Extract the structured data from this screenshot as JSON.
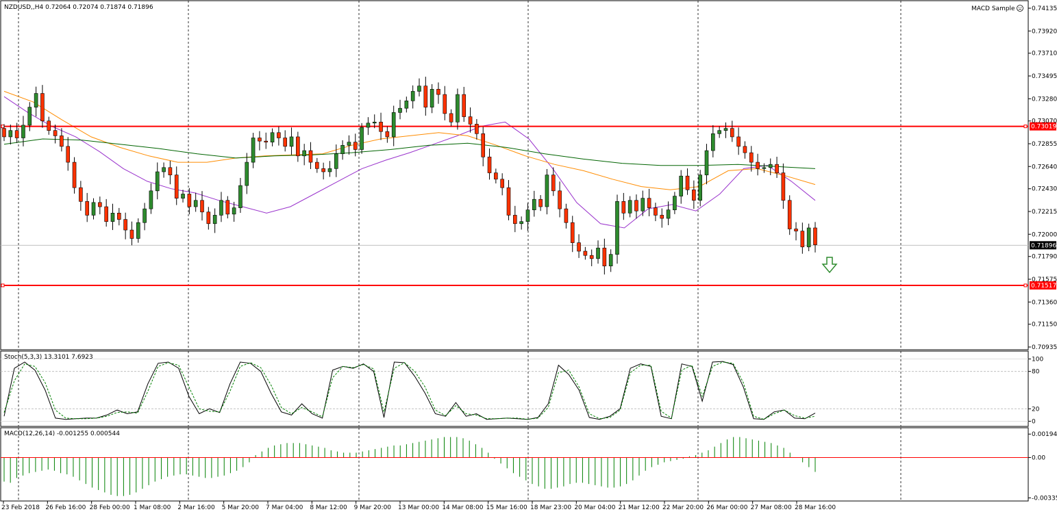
{
  "chart_data": [
    {
      "type": "candlestick",
      "symbol_header": "NZDUSD,,H4  0.72064 0.72074 0.71874 0.71896",
      "indicator_badge": "MACD Sample",
      "price_axis_labels": [
        "0.74135",
        "0.73920",
        "0.73710",
        "0.73495",
        "0.73280",
        "0.73070",
        "0.72855",
        "0.72640",
        "0.72430",
        "0.72215",
        "0.72000",
        "0.71790",
        "0.71575",
        "0.71360",
        "0.71150",
        "0.70935"
      ],
      "ylim": [
        0.70935,
        0.74135
      ],
      "x_tick_labels": [
        "23 Feb 2018",
        "26 Feb 16:00",
        "28 Feb 00:00",
        "1 Mar 08:00",
        "2 Mar 16:00",
        "5 Mar 20:00",
        "7 Mar 04:00",
        "8 Mar 12:00",
        "9 Mar 20:00",
        "13 Mar 00:00",
        "14 Mar 08:00",
        "15 Mar 16:00",
        "18 Mar 23:00",
        "20 Mar 04:00",
        "21 Mar 12:00",
        "22 Mar 20:00",
        "26 Mar 00:00",
        "27 Mar 08:00",
        "28 Mar 16:00"
      ],
      "candle_close_path": [
        0.7292,
        0.7298,
        0.7291,
        0.7303,
        0.732,
        0.7333,
        0.7307,
        0.7298,
        0.7293,
        0.7283,
        0.7268,
        0.7244,
        0.7231,
        0.7218,
        0.723,
        0.7226,
        0.7212,
        0.722,
        0.7214,
        0.7204,
        0.7196,
        0.7211,
        0.7224,
        0.7241,
        0.7259,
        0.7263,
        0.7256,
        0.7234,
        0.7238,
        0.7226,
        0.7232,
        0.7221,
        0.721,
        0.7218,
        0.7232,
        0.7219,
        0.7225,
        0.7246,
        0.7268,
        0.7291,
        0.7288,
        0.7287,
        0.7296,
        0.7291,
        0.7283,
        0.7292,
        0.7274,
        0.7279,
        0.7268,
        0.7262,
        0.7259,
        0.7262,
        0.7276,
        0.7284,
        0.7287,
        0.728,
        0.7301,
        0.7305,
        0.7306,
        0.7297,
        0.7292,
        0.7315,
        0.7319,
        0.7326,
        0.7335,
        0.734,
        0.732,
        0.7337,
        0.7332,
        0.7314,
        0.7306,
        0.7332,
        0.7311,
        0.7304,
        0.7295,
        0.7273,
        0.7258,
        0.7252,
        0.7244,
        0.7218,
        0.721,
        0.7212,
        0.7223,
        0.7233,
        0.7226,
        0.7256,
        0.7241,
        0.7224,
        0.7211,
        0.7192,
        0.7184,
        0.718,
        0.7177,
        0.7187,
        0.717,
        0.7181,
        0.7231,
        0.722,
        0.7232,
        0.7222,
        0.7234,
        0.7225,
        0.7218,
        0.7215,
        0.7223,
        0.7236,
        0.7255,
        0.7242,
        0.7232,
        0.7256,
        0.7279,
        0.7295,
        0.7298,
        0.73,
        0.7292,
        0.7283,
        0.7277,
        0.7268,
        0.7262,
        0.7263,
        0.7266,
        0.7258,
        0.7232,
        0.7205,
        0.7203,
        0.7188,
        0.7206,
        0.719
      ],
      "series": [
        {
          "name": "MA purple",
          "color": "#9932cc",
          "values": [
            0.733,
            0.7315,
            0.7302,
            0.7292,
            0.7278,
            0.7262,
            0.725,
            0.7243,
            0.7239,
            0.7232,
            0.7226,
            0.722,
            0.7226,
            0.7238,
            0.725,
            0.7262,
            0.727,
            0.7277,
            0.7285,
            0.7293,
            0.7302,
            0.7306,
            0.729,
            0.7262,
            0.723,
            0.721,
            0.7206,
            0.7224,
            0.7228,
            0.7222,
            0.7238,
            0.7262,
            0.7265,
            0.725,
            0.7232
          ]
        },
        {
          "name": "MA orange",
          "color": "#ff8c00",
          "values": [
            0.7335,
            0.7325,
            0.7308,
            0.7292,
            0.7282,
            0.7274,
            0.7268,
            0.7268,
            0.7272,
            0.7274,
            0.7275,
            0.7276,
            0.7284,
            0.729,
            0.7293,
            0.7296,
            0.7293,
            0.7284,
            0.7274,
            0.7266,
            0.726,
            0.7252,
            0.7245,
            0.7242,
            0.7245,
            0.726,
            0.7262,
            0.7255,
            0.7247
          ]
        },
        {
          "name": "MA green",
          "color": "#006400",
          "values": [
            0.7285,
            0.729,
            0.7289,
            0.7285,
            0.7281,
            0.7276,
            0.7272,
            0.7274,
            0.7275,
            0.7277,
            0.728,
            0.7284,
            0.7286,
            0.7282,
            0.7276,
            0.7271,
            0.7267,
            0.7265,
            0.7265,
            0.7266,
            0.7264,
            0.7262
          ]
        }
      ],
      "hlines": [
        {
          "value": 0.73019,
          "label": "0.73019",
          "color": "#ff0000"
        },
        {
          "value": 0.71517,
          "label": "0.71517",
          "color": "#ff0000"
        },
        {
          "value": 0.71896,
          "label": "0.71896",
          "color": "#c0c0c0"
        }
      ],
      "arrow": {
        "direction": "down",
        "color": "#2e8b2e"
      }
    },
    {
      "type": "line",
      "header": "Stoch(5,3,3) 13.3101 7.6923",
      "ylim": [
        -5,
        106
      ],
      "axis_labels": [
        "100",
        "80",
        "20",
        "0"
      ],
      "levels": [
        80,
        20
      ],
      "series": [
        {
          "name": "main",
          "color": "#000000",
          "values": [
            8,
            85,
            95,
            82,
            50,
            5,
            3,
            4,
            5,
            5,
            10,
            18,
            12,
            15,
            60,
            93,
            95,
            85,
            40,
            12,
            20,
            14,
            60,
            95,
            93,
            80,
            45,
            15,
            10,
            28,
            12,
            5,
            82,
            88,
            85,
            92,
            80,
            6,
            95,
            94,
            72,
            45,
            12,
            8,
            30,
            8,
            12,
            3,
            4,
            5,
            4,
            3,
            6,
            28,
            90,
            75,
            50,
            6,
            3,
            8,
            20,
            85,
            92,
            88,
            8,
            4,
            92,
            88,
            32,
            95,
            96,
            91,
            55,
            4,
            3,
            15,
            18,
            5,
            4,
            13
          ]
        },
        {
          "name": "signal",
          "color": "#008000",
          "values": [
            14,
            65,
            92,
            88,
            62,
            18,
            5,
            4,
            4,
            5,
            8,
            14,
            15,
            13,
            48,
            88,
            94,
            90,
            55,
            20,
            16,
            15,
            48,
            88,
            94,
            86,
            58,
            22,
            12,
            22,
            15,
            7,
            70,
            88,
            86,
            91,
            84,
            15,
            85,
            94,
            80,
            55,
            18,
            9,
            25,
            12,
            10,
            4,
            4,
            5,
            5,
            3,
            5,
            22,
            78,
            82,
            55,
            12,
            4,
            6,
            18,
            78,
            90,
            90,
            16,
            5,
            82,
            90,
            40,
            88,
            95,
            93,
            62,
            8,
            3,
            12,
            18,
            9,
            5,
            8
          ]
        }
      ]
    },
    {
      "type": "bar",
      "header": "MACD(12,26,14) -0.001255 0.000544",
      "ylim": [
        -0.0035,
        0.0023
      ],
      "axis_labels": [
        "0.001945",
        "0.00",
        "-0.003356"
      ],
      "signal_color": "#ff0000",
      "bar_color": "#008000",
      "values": [
        -0.002,
        -0.0021,
        -0.0017,
        -0.0015,
        -0.0013,
        -0.0012,
        -0.0011,
        -0.001,
        -0.0011,
        -0.0013,
        -0.0014,
        -0.0016,
        -0.0019,
        -0.0022,
        -0.0025,
        -0.0027,
        -0.0029,
        -0.0031,
        -0.0032,
        -0.0032,
        -0.0031,
        -0.0029,
        -0.0026,
        -0.0023,
        -0.002,
        -0.0018,
        -0.0016,
        -0.0015,
        -0.0014,
        -0.0014,
        -0.0015,
        -0.0016,
        -0.0017,
        -0.0017,
        -0.0016,
        -0.0015,
        -0.0013,
        -0.0011,
        -0.0008,
        -0.0004,
        0.0002,
        0.0005,
        0.0008,
        0.001,
        0.0011,
        0.0012,
        0.0012,
        0.0012,
        0.0011,
        0.001,
        0.0009,
        0.0008,
        0.0006,
        0.0005,
        0.0004,
        0.0004,
        0.0004,
        0.0005,
        0.0006,
        0.0007,
        0.0008,
        0.0009,
        0.001,
        0.001,
        0.0011,
        0.0012,
        0.0013,
        0.0014,
        0.0015,
        0.0016,
        0.0017,
        0.0017,
        0.0017,
        0.0016,
        0.0014,
        0.0011,
        0.0008,
        0.0004,
        -0.0001,
        -0.0005,
        -0.0009,
        -0.0013,
        -0.0016,
        -0.0019,
        -0.0022,
        -0.0024,
        -0.0026,
        -0.0026,
        -0.0025,
        -0.0024,
        -0.0022,
        -0.0021,
        -0.0021,
        -0.0022,
        -0.0023,
        -0.0024,
        -0.0025,
        -0.0025,
        -0.0024,
        -0.0022,
        -0.0019,
        -0.0015,
        -0.0011,
        -0.0008,
        -0.0006,
        -0.0004,
        -0.0003,
        -0.0002,
        -0.0001,
        0.0001,
        0.0002,
        0.0004,
        0.0006,
        0.0009,
        0.0012,
        0.0015,
        0.0017,
        0.0017,
        0.0016,
        0.0015,
        0.0014,
        0.0013,
        0.0012,
        0.001,
        0.0008,
        0.0004,
        0.0,
        -0.0004,
        -0.0008,
        -0.0012
      ]
    }
  ]
}
